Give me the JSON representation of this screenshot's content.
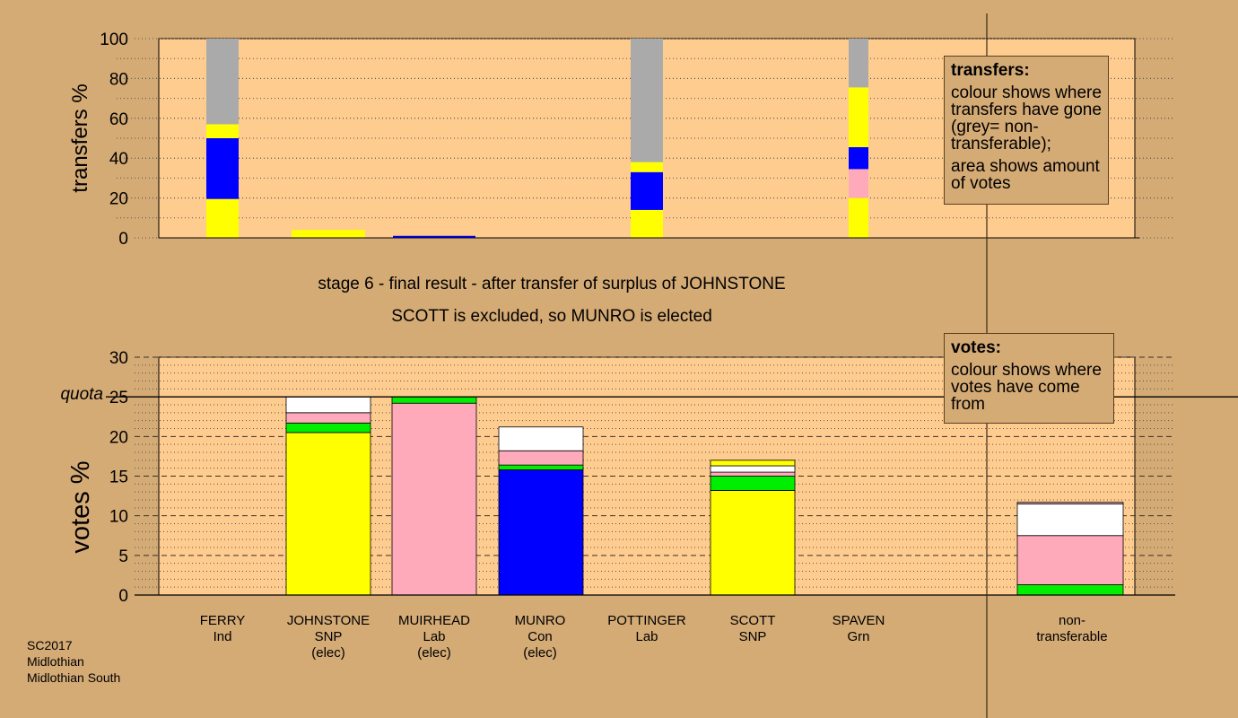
{
  "colors": {
    "background": "#d4aa75",
    "plot": "#ffcc90",
    "yellow": "#ffff00",
    "blue": "#0000ff",
    "pink": "#ffaabb",
    "green": "#00ee00",
    "white": "#ffffff",
    "grey": "#aaaaaa"
  },
  "stage": {
    "line1": "stage 6 - final result - after transfer of surplus of JOHNSTONE",
    "line2": "SCOTT is excluded, so MUNRO is elected"
  },
  "legend_transfers": {
    "title": "transfers:",
    "p1": "colour shows where transfers have gone (grey= non-transferable);",
    "p2": "area shows amount of votes"
  },
  "legend_votes": {
    "title": "votes:",
    "p1": "colour shows where votes have come from"
  },
  "candidates": [
    {
      "name": "FERRY",
      "party": "Ind",
      "status": ""
    },
    {
      "name": "JOHNSTONE",
      "party": "SNP",
      "status": "(elec)"
    },
    {
      "name": "MUIRHEAD",
      "party": "Lab",
      "status": "(elec)"
    },
    {
      "name": "MUNRO",
      "party": "Con",
      "status": "(elec)"
    },
    {
      "name": "POTTINGER",
      "party": "Lab",
      "status": ""
    },
    {
      "name": "SCOTT",
      "party": "SNP",
      "status": ""
    },
    {
      "name": "SPAVEN",
      "party": "Grn",
      "status": ""
    },
    {
      "name": "non-",
      "party": "transferable",
      "status": ""
    }
  ],
  "footer": {
    "line1": "SC2017",
    "line2": "Midlothian",
    "line3": "Midlothian South"
  },
  "chart_data": [
    {
      "type": "bar",
      "title": "",
      "ylabel": "transfers %",
      "ylim": [
        0,
        100
      ],
      "yticks": [
        "0",
        "20",
        "40",
        "60",
        "80",
        "100"
      ],
      "bars": [
        {
          "index": 0,
          "segments": [
            {
              "color": "yellow",
              "value": 19.5
            },
            {
              "color": "blue",
              "value": 30.5
            },
            {
              "color": "yellow",
              "value": 7
            },
            {
              "color": "grey",
              "value": 43
            }
          ]
        },
        {
          "index": 1,
          "segments": [
            {
              "color": "yellow",
              "value": 4
            }
          ]
        },
        {
          "index": 2,
          "segments": [
            {
              "color": "blue",
              "value": 1
            }
          ]
        },
        {
          "index": 4,
          "segments": [
            {
              "color": "yellow",
              "value": 14
            },
            {
              "color": "blue",
              "value": 19
            },
            {
              "color": "yellow",
              "value": 5
            },
            {
              "color": "grey",
              "value": 62
            }
          ]
        },
        {
          "index": 6,
          "segments": [
            {
              "color": "yellow",
              "value": 20
            },
            {
              "color": "pink",
              "value": 14.5
            },
            {
              "color": "blue",
              "value": 11
            },
            {
              "color": "yellow",
              "value": 30
            },
            {
              "color": "grey",
              "value": 24.5
            }
          ]
        }
      ]
    },
    {
      "type": "bar",
      "title": "",
      "ylabel": "votes %",
      "ylim": [
        0,
        30
      ],
      "yticks": [
        "0",
        "5",
        "10",
        "15",
        "20",
        "25",
        "30"
      ],
      "quota": 25,
      "quota_label": "quota",
      "bars": [
        {
          "index": 1,
          "segments": [
            {
              "color": "yellow",
              "value": 20.5
            },
            {
              "color": "green",
              "value": 1.2
            },
            {
              "color": "pink",
              "value": 1.3
            },
            {
              "color": "white",
              "value": 2.0
            }
          ]
        },
        {
          "index": 2,
          "segments": [
            {
              "color": "pink",
              "value": 24.2
            },
            {
              "color": "green",
              "value": 0.8
            }
          ]
        },
        {
          "index": 3,
          "segments": [
            {
              "color": "blue",
              "value": 15.8
            },
            {
              "color": "green",
              "value": 0.6
            },
            {
              "color": "pink",
              "value": 1.8
            },
            {
              "color": "white",
              "value": 3.0
            }
          ]
        },
        {
          "index": 5,
          "segments": [
            {
              "color": "yellow",
              "value": 13.2
            },
            {
              "color": "green",
              "value": 1.8
            },
            {
              "color": "pink",
              "value": 0.5
            },
            {
              "color": "white",
              "value": 0.8
            },
            {
              "color": "yellow",
              "value": 0.7
            }
          ]
        },
        {
          "index": 7,
          "segments": [
            {
              "color": "green",
              "value": 1.3
            },
            {
              "color": "pink",
              "value": 6.2
            },
            {
              "color": "white",
              "value": 4.0
            },
            {
              "color": "pink",
              "value": 0.2
            }
          ]
        }
      ]
    }
  ]
}
